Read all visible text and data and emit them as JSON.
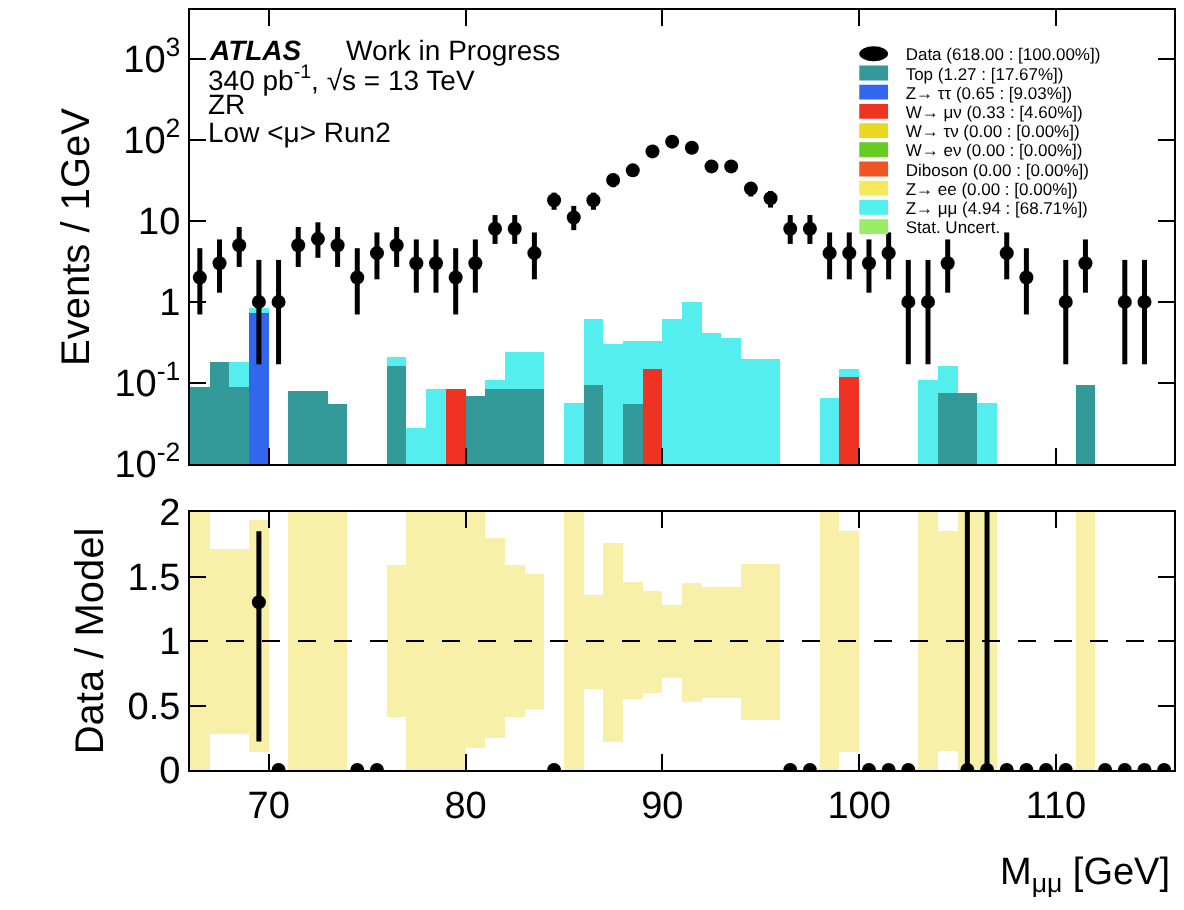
{
  "chart_data": [
    {
      "type": "bar",
      "stacked": true,
      "log": true,
      "tick_labels": "y",
      "legend": "top right",
      "marker": "circle",
      "ylabel": "Events / 1GeV",
      "annotations": [
        "ATLAS",
        "Work in Progress",
        "340 pb$^{-1}$, √s = 13 TeV",
        "ZR",
        "Low <μ> Run2"
      ],
      "x": [
        66.5,
        67.5,
        68.5,
        69.5,
        70.5,
        71.5,
        72.5,
        73.5,
        74.5,
        75.5,
        76.5,
        77.5,
        78.5,
        79.5,
        80.5,
        81.5,
        82.5,
        83.5,
        84.5,
        85.5,
        86.5,
        87.5,
        88.5,
        89.5,
        90.5,
        91.5,
        92.5,
        93.5,
        94.5,
        95.5,
        96.5,
        97.5,
        98.5,
        99.5,
        100.5,
        101.5,
        102.5,
        103.5,
        104.5,
        105.5,
        106.5,
        107.5,
        108.5,
        109.5,
        110.5,
        111.5,
        112.5,
        113.5,
        114.5
      ],
      "xlim": [
        66,
        116
      ],
      "xticks": [
        70,
        80,
        90,
        100,
        110
      ],
      "ylim": [
        0.01,
        4000
      ],
      "yticks": [
        {
          "value": 0.01,
          "label": "10$^{-2}$"
        },
        {
          "value": 0.1,
          "label": "10$^{-1}$"
        },
        1,
        10,
        {
          "value": 100,
          "label": "10$^{2}$"
        },
        {
          "value": 1000,
          "label": "10$^{3}$"
        }
      ],
      "series": [
        {
          "name": "Data (618.00 : [100.00%])",
          "type": "scatter",
          "color": "#000000",
          "values": [
            2,
            3,
            5,
            1,
            1,
            5,
            6,
            5,
            2,
            4,
            5,
            3,
            3,
            2,
            3,
            8,
            8,
            4,
            18,
            11,
            18,
            32,
            42,
            72,
            95,
            80,
            47,
            47,
            25,
            19,
            8,
            8,
            4,
            4,
            3,
            4,
            1,
            1,
            3,
            null,
            null,
            4,
            2,
            null,
            1,
            3,
            null,
            1,
            1
          ],
          "errors": [
            [
              0.7,
              4.6
            ],
            [
              1.3,
              5.9
            ],
            [
              2.7,
              8.4
            ],
            [
              0.17,
              3.3
            ],
            [
              0.17,
              3.3
            ],
            [
              2.7,
              8.4
            ],
            [
              3.5,
              9.6
            ],
            [
              2.7,
              8.4
            ],
            [
              0.7,
              4.6
            ],
            [
              1.9,
              7.2
            ],
            [
              2.7,
              8.4
            ],
            [
              1.3,
              5.9
            ],
            [
              1.3,
              5.9
            ],
            [
              0.7,
              4.6
            ],
            [
              1.3,
              5.9
            ],
            [
              5.2,
              11.8
            ],
            [
              5.2,
              11.8
            ],
            [
              1.9,
              7.2
            ],
            [
              13.7,
              22.3
            ],
            [
              7.7,
              15.3
            ],
            [
              13.7,
              22.3
            ],
            [
              26,
              38
            ],
            [
              35,
              49
            ],
            [
              63,
              81
            ],
            [
              85,
              105
            ],
            [
              71,
              89
            ],
            [
              40,
              54
            ],
            [
              40,
              54
            ],
            [
              20,
              30
            ],
            [
              14.6,
              23.4
            ],
            [
              5.2,
              11.8
            ],
            [
              5.2,
              11.8
            ],
            [
              1.9,
              7.2
            ],
            [
              1.9,
              7.2
            ],
            [
              1.3,
              5.9
            ],
            [
              1.9,
              7.2
            ],
            [
              0.17,
              3.3
            ],
            [
              0.17,
              3.3
            ],
            [
              1.3,
              5.9
            ],
            null,
            null,
            [
              1.9,
              7.2
            ],
            [
              0.7,
              4.6
            ],
            null,
            [
              0.17,
              3.3
            ],
            [
              1.3,
              5.9
            ],
            null,
            [
              0.17,
              3.3
            ],
            [
              0.17,
              3.3
            ]
          ]
        },
        {
          "name": "Top (1.27 : [17.67%])",
          "color": "#339999",
          "values": [
            0.09,
            0.18,
            0.09,
            null,
            null,
            0.08,
            0.08,
            0.055,
            null,
            null,
            0.16,
            null,
            null,
            null,
            0.07,
            0.085,
            0.085,
            0.085,
            null,
            null,
            0.094,
            null,
            0.055,
            null,
            null,
            null,
            null,
            null,
            null,
            null,
            null,
            null,
            null,
            null,
            null,
            null,
            null,
            null,
            0.075,
            0.075,
            null,
            null,
            null,
            null,
            null,
            0.094,
            null,
            null,
            null
          ]
        },
        {
          "name": "Z→ ττ (0.65 : [9.03%])",
          "color": "#3366ee",
          "values": [
            null,
            null,
            null,
            0.72,
            null,
            null,
            null,
            null,
            null,
            null,
            null,
            null,
            null,
            null,
            null,
            null,
            null,
            null,
            null,
            null,
            null,
            null,
            null,
            null,
            null,
            null,
            null,
            null,
            null,
            null,
            null,
            null,
            null,
            null,
            null,
            null,
            null,
            null,
            null,
            null,
            null,
            null,
            null,
            null,
            null,
            null,
            null,
            null,
            null
          ]
        },
        {
          "name": "W→ μν (0.33 : [4.60%])",
          "color": "#ee3322",
          "values": [
            null,
            null,
            null,
            null,
            null,
            null,
            null,
            null,
            null,
            null,
            null,
            null,
            null,
            0.085,
            null,
            null,
            null,
            null,
            null,
            null,
            null,
            null,
            null,
            0.15,
            null,
            null,
            null,
            null,
            null,
            null,
            null,
            null,
            null,
            0.12,
            null,
            null,
            null,
            null,
            null,
            null,
            null,
            null,
            null,
            null,
            null,
            null,
            null,
            null,
            null
          ]
        },
        {
          "name": "W→ τν (0.00 : [0.00%])",
          "color": "#e8d820",
          "values": [
            null,
            null,
            null,
            null,
            null,
            null,
            null,
            null,
            null,
            null,
            null,
            null,
            null,
            null,
            null,
            null,
            null,
            null,
            null,
            null,
            null,
            null,
            null,
            null,
            null,
            null,
            null,
            null,
            null,
            null,
            null,
            null,
            null,
            null,
            null,
            null,
            null,
            null,
            null,
            null,
            null,
            null,
            null,
            null,
            null,
            null,
            null,
            null,
            null
          ]
        },
        {
          "name": "W→ eν (0.00 : [0.00%])",
          "color": "#66cc22",
          "values": [
            null,
            null,
            null,
            null,
            null,
            null,
            null,
            null,
            null,
            null,
            null,
            null,
            null,
            null,
            null,
            null,
            null,
            null,
            null,
            null,
            null,
            null,
            null,
            null,
            null,
            null,
            null,
            null,
            null,
            null,
            null,
            null,
            null,
            null,
            null,
            null,
            null,
            null,
            null,
            null,
            null,
            null,
            null,
            null,
            null,
            null,
            null,
            null,
            null
          ]
        },
        {
          "name": "Diboson (0.00 : [0.00%])",
          "color": "#ee5522",
          "values": [
            null,
            null,
            null,
            null,
            null,
            null,
            null,
            null,
            null,
            null,
            null,
            null,
            null,
            null,
            null,
            null,
            null,
            null,
            null,
            null,
            null,
            null,
            null,
            null,
            null,
            null,
            null,
            null,
            null,
            null,
            null,
            null,
            null,
            null,
            null,
            null,
            null,
            null,
            null,
            null,
            null,
            null,
            null,
            null,
            null,
            null,
            null,
            null,
            null
          ]
        },
        {
          "name": "Z→ ee (0.00 : [0.00%])",
          "color": "#f5e85a",
          "values": [
            null,
            null,
            null,
            null,
            null,
            null,
            null,
            null,
            null,
            null,
            null,
            null,
            null,
            null,
            null,
            null,
            null,
            null,
            null,
            null,
            null,
            null,
            null,
            null,
            null,
            null,
            null,
            null,
            null,
            null,
            null,
            null,
            null,
            null,
            null,
            null,
            null,
            null,
            null,
            null,
            null,
            null,
            null,
            null,
            null,
            null,
            null,
            null,
            null
          ]
        },
        {
          "name": "Z→ μμ (4.94 : [68.71%])",
          "color": "#55eeee",
          "values": [
            null,
            null,
            0.09,
            0.13,
            null,
            null,
            null,
            null,
            null,
            null,
            0.05,
            0.028,
            0.085,
            null,
            null,
            0.025,
            0.155,
            0.155,
            null,
            0.057,
            0.52,
            0.3,
            0.275,
            0.18,
            0.61,
            1.0,
            0.41,
            0.36,
            0.2,
            0.2,
            null,
            null,
            0.065,
            0.03,
            null,
            null,
            null,
            0.11,
            0.085,
            null,
            0.057,
            null,
            null,
            null,
            null,
            null,
            null,
            null,
            null
          ]
        },
        {
          "name": "Stat. Uncert.",
          "color": "#99ee66",
          "values": [
            null,
            null,
            null,
            null,
            null,
            null,
            null,
            null,
            null,
            null,
            null,
            null,
            null,
            null,
            null,
            null,
            null,
            null,
            null,
            null,
            null,
            null,
            null,
            null,
            null,
            null,
            null,
            null,
            null,
            null,
            null,
            null,
            null,
            null,
            null,
            null,
            null,
            null,
            null,
            null,
            null,
            null,
            null,
            null,
            null,
            null,
            null,
            null,
            null
          ]
        }
      ]
    },
    {
      "type": "bar",
      "marker": "circle",
      "ylabel": "Data / Model",
      "xlabel": "M$_{μμ}$ [GeV]",
      "x": [
        66.5,
        67.5,
        68.5,
        69.5,
        70.5,
        71.5,
        72.5,
        73.5,
        74.5,
        75.5,
        76.5,
        77.5,
        78.5,
        79.5,
        80.5,
        81.5,
        82.5,
        83.5,
        84.5,
        85.5,
        86.5,
        87.5,
        88.5,
        89.5,
        90.5,
        91.5,
        92.5,
        93.5,
        94.5,
        95.5,
        96.5,
        97.5,
        98.5,
        99.5,
        100.5,
        101.5,
        102.5,
        103.5,
        104.5,
        105.5,
        106.5,
        107.5,
        108.5,
        109.5,
        110.5,
        111.5,
        112.5,
        113.5,
        114.5,
        115.5
      ],
      "xlim": [
        66,
        116
      ],
      "xticks": [
        70,
        80,
        90,
        100,
        110
      ],
      "ylim": [
        0,
        2
      ],
      "yticks": [
        0,
        0.5,
        1,
        1.5,
        2
      ],
      "ref_lines": [
        {
          "axis": "y",
          "value": 1,
          "color": "#000000",
          "line_style": "dashed"
        }
      ],
      "series": [
        {
          "color": "#f8f0a8",
          "base": [
            0,
            0.28,
            0.28,
            0.14,
            null,
            0,
            0,
            0,
            null,
            null,
            0.41,
            0,
            0,
            0,
            0.17,
            0.25,
            0.41,
            0.47,
            null,
            0,
            0.63,
            0.22,
            0.55,
            0.6,
            0.71,
            0.53,
            0.56,
            0.56,
            0.39,
            0.39,
            null,
            null,
            0,
            0.14,
            null,
            null,
            null,
            0,
            0.15,
            0,
            0,
            null,
            null,
            null,
            null,
            0,
            null,
            null,
            null,
            null
          ],
          "values": [
            2,
            1.43,
            1.43,
            1.8,
            null,
            2,
            2,
            2,
            null,
            null,
            1.18,
            2,
            2,
            2,
            1.83,
            1.55,
            1.18,
            1.05,
            null,
            2,
            0.73,
            1.54,
            0.91,
            0.79,
            0.57,
            0.92,
            0.86,
            0.86,
            1.21,
            1.21,
            null,
            null,
            2,
            1.71,
            null,
            null,
            null,
            2,
            1.7,
            2,
            2,
            null,
            null,
            null,
            null,
            2,
            null,
            null,
            null,
            null
          ]
        },
        {
          "type": "scatter",
          "color": "#000000",
          "values": [
            null,
            null,
            null,
            1.3,
            0,
            null,
            null,
            null,
            0,
            0,
            null,
            null,
            null,
            null,
            null,
            null,
            null,
            null,
            0,
            null,
            null,
            null,
            null,
            null,
            null,
            null,
            null,
            null,
            null,
            null,
            0,
            0,
            null,
            null,
            0,
            0,
            0,
            null,
            null,
            0,
            0,
            0,
            0,
            0,
            0,
            null,
            0,
            0,
            0,
            0
          ],
          "errors": [
            null,
            null,
            null,
            [
              0.22,
              1.85
            ],
            null,
            null,
            null,
            null,
            null,
            null,
            null,
            null,
            null,
            null,
            null,
            null,
            null,
            null,
            null,
            null,
            null,
            null,
            null,
            null,
            null,
            null,
            null,
            null,
            null,
            null,
            null,
            null,
            null,
            null,
            null,
            null,
            null,
            null,
            null,
            [
              0,
              2
            ],
            [
              0,
              2
            ],
            null,
            null,
            null,
            null,
            null,
            null,
            null,
            null,
            null
          ]
        }
      ]
    }
  ]
}
